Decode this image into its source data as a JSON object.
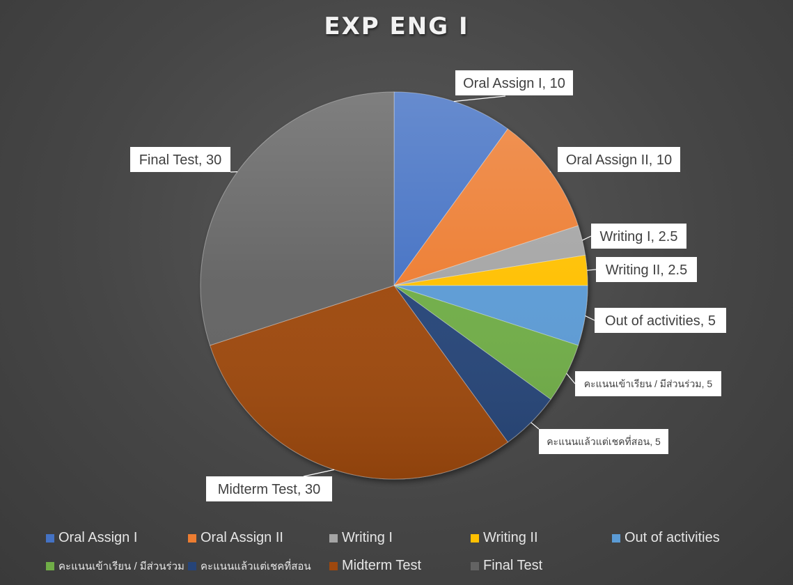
{
  "chart_data": {
    "type": "pie",
    "title": "EXP ENG I",
    "categories": [
      "Oral Assign I",
      "Oral Assign II",
      "Writing I",
      "Writing II",
      "Out of activities",
      "คะแนนเข้าเรียน / มีส่วนร่วม",
      "คะแนนแล้วแต่เชคที่สอน",
      "Midterm Test",
      "Final Test"
    ],
    "values": [
      10,
      10,
      2.5,
      2.5,
      5,
      5,
      5,
      30,
      30
    ],
    "colors": [
      "#4472c4",
      "#ed7d31",
      "#a5a5a5",
      "#ffc000",
      "#5b9bd5",
      "#70ad47",
      "#264478",
      "#9e480e",
      "#636363"
    ],
    "data_labels": [
      "Oral Assign I, 10",
      "Oral Assign II, 10",
      "Writing I, 2.5",
      "Writing II, 2.5",
      "Out of activities, 5",
      "คะแนนเข้าเรียน / มีส่วนร่วม, 5",
      "คะแนนแล้วแต่เชคที่สอน, 5",
      "Midterm Test, 30",
      "Final Test, 30"
    ],
    "legend_position": "bottom"
  }
}
